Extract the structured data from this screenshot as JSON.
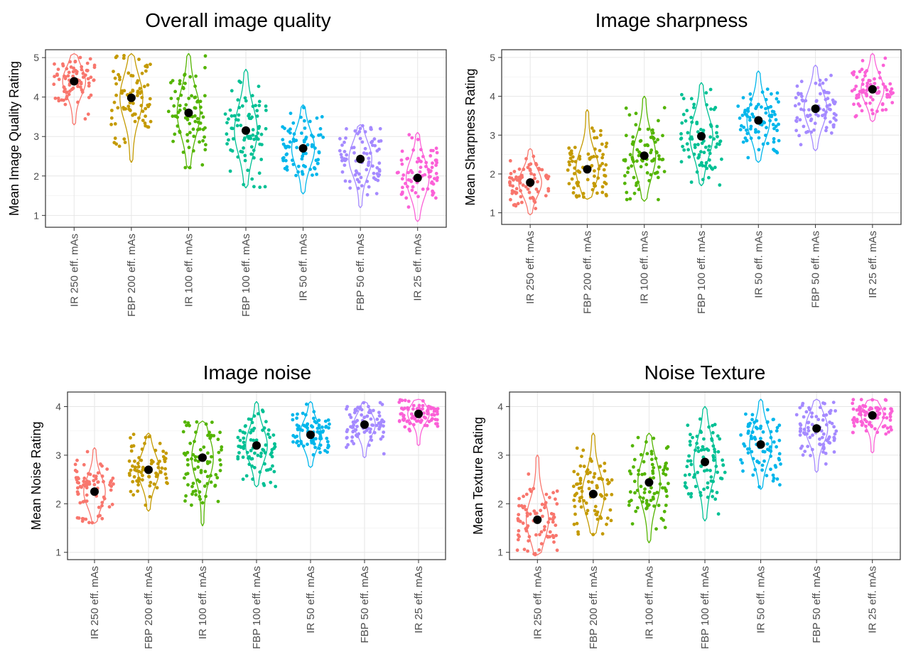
{
  "palette": [
    "#F8766D",
    "#C49A00",
    "#53B400",
    "#00C094",
    "#00B6EB",
    "#A58AFF",
    "#FB61D7"
  ],
  "mean_marker_color": "#000000",
  "categories": [
    "IR 250 eff. mAs",
    "FBP 200 eff. mAs",
    "IR 100 eff. mAs",
    "FBP 100 eff. mAs",
    "IR 50 eff. mAs",
    "FBP 50 eff. mAs",
    "IR 25 eff. mAs"
  ],
  "chart_data": [
    {
      "type": "scatter",
      "subtype": "violin-jitter",
      "title": "Overall image quality",
      "xlabel": "",
      "ylabel": "Mean Image Quality Rating",
      "ylim": [
        0.7,
        5.2
      ],
      "yticks": [
        1,
        2,
        3,
        4,
        5
      ],
      "grid": true,
      "legend": "none",
      "categories": [
        "IR 250 eff. mAs",
        "FBP 200 eff. mAs",
        "IR 100 eff. mAs",
        "FBP 100 eff. mAs",
        "IR 50 eff. mAs",
        "FBP 50 eff. mAs",
        "IR 25 eff. mAs"
      ],
      "means": [
        4.4,
        3.98,
        3.6,
        3.15,
        2.7,
        2.43,
        1.95
      ],
      "ranges": [
        [
          3.3,
          5.1
        ],
        [
          2.35,
          5.1
        ],
        [
          2.2,
          5.1
        ],
        [
          1.7,
          4.7
        ],
        [
          1.55,
          3.8
        ],
        [
          1.2,
          3.3
        ],
        [
          0.85,
          3.1
        ]
      ]
    },
    {
      "type": "scatter",
      "subtype": "violin-jitter",
      "title": "Image sharpness",
      "xlabel": "",
      "ylabel": "Mean Sharpness Rating",
      "ylim": [
        0.7,
        5.2
      ],
      "yticks": [
        1,
        2,
        3,
        4,
        5
      ],
      "grid": true,
      "legend": "none",
      "categories": [
        "IR 250 eff. mAs",
        "FBP 200 eff. mAs",
        "IR 100 eff. mAs",
        "FBP 100 eff. mAs",
        "IR 50 eff. mAs",
        "FBP 50 eff. mAs",
        "IR 25 eff. mAs"
      ],
      "means": [
        1.78,
        2.12,
        2.47,
        2.97,
        3.38,
        3.68,
        4.18
      ],
      "ranges": [
        [
          0.95,
          2.65
        ],
        [
          1.35,
          3.65
        ],
        [
          1.3,
          4.0
        ],
        [
          1.7,
          4.35
        ],
        [
          2.3,
          4.65
        ],
        [
          2.6,
          4.8
        ],
        [
          3.35,
          5.1
        ]
      ]
    },
    {
      "type": "scatter",
      "subtype": "violin-jitter",
      "title": "Image noise",
      "xlabel": "",
      "ylabel": "Mean Noise Rating",
      "ylim": [
        0.85,
        4.3
      ],
      "yticks": [
        1,
        2,
        3,
        4
      ],
      "grid": true,
      "legend": "none",
      "categories": [
        "IR 250 eff. mAs",
        "FBP 200 eff. mAs",
        "IR 100 eff. mAs",
        "FBP 100 eff. mAs",
        "IR 50 eff. mAs",
        "FBP 50 eff. mAs",
        "IR 25 eff. mAs"
      ],
      "means": [
        2.25,
        2.7,
        2.95,
        3.2,
        3.42,
        3.63,
        3.85
      ],
      "ranges": [
        [
          1.6,
          3.15
        ],
        [
          1.85,
          3.45
        ],
        [
          1.55,
          3.7
        ],
        [
          2.35,
          4.1
        ],
        [
          2.75,
          4.1
        ],
        [
          2.95,
          4.1
        ],
        [
          3.2,
          4.15
        ]
      ]
    },
    {
      "type": "scatter",
      "subtype": "violin-jitter",
      "title": "Noise Texture",
      "xlabel": "",
      "ylabel": "Mean Texture Rating",
      "ylim": [
        0.85,
        4.3
      ],
      "yticks": [
        1,
        2,
        3,
        4
      ],
      "grid": true,
      "legend": "none",
      "categories": [
        "IR 250 eff. mAs",
        "FBP 200 eff. mAs",
        "IR 100 eff. mAs",
        "FBP 100 eff. mAs",
        "IR 50 eff. mAs",
        "FBP 50 eff. mAs",
        "IR 25 eff. mAs"
      ],
      "means": [
        1.67,
        2.2,
        2.44,
        2.86,
        3.22,
        3.55,
        3.82
      ],
      "ranges": [
        [
          0.95,
          3.0
        ],
        [
          1.35,
          3.45
        ],
        [
          1.2,
          3.45
        ],
        [
          1.65,
          4.0
        ],
        [
          2.3,
          4.15
        ],
        [
          2.65,
          4.15
        ],
        [
          3.05,
          4.15
        ]
      ]
    }
  ]
}
